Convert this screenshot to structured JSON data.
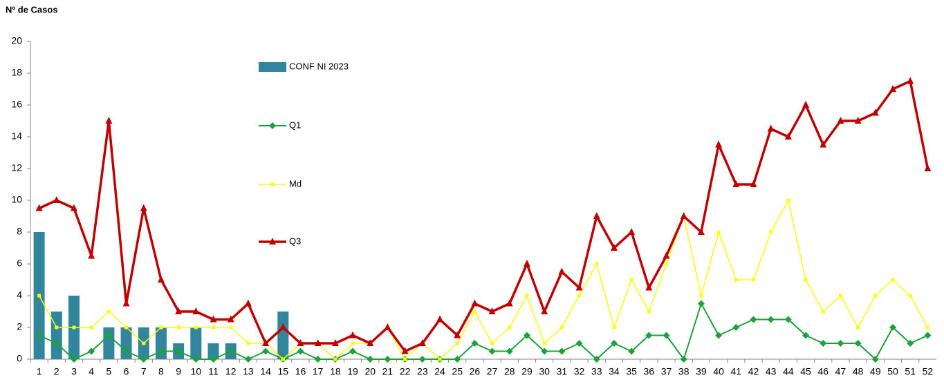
{
  "chart_data": {
    "type": "bar-line",
    "y_label": "Nº de Casos",
    "categories": [
      1,
      2,
      3,
      4,
      5,
      6,
      7,
      8,
      9,
      10,
      11,
      12,
      13,
      14,
      15,
      16,
      17,
      18,
      19,
      20,
      21,
      22,
      23,
      24,
      25,
      26,
      27,
      28,
      29,
      30,
      31,
      32,
      33,
      34,
      35,
      36,
      37,
      38,
      39,
      40,
      41,
      42,
      43,
      44,
      45,
      46,
      47,
      48,
      49,
      50,
      51,
      52
    ],
    "ylim": [
      0,
      20
    ],
    "yticks": [
      0,
      2,
      4,
      6,
      8,
      10,
      12,
      14,
      16,
      18,
      20
    ],
    "series": [
      {
        "name": "CONF NI 2023",
        "type": "bar",
        "color": "#31859c",
        "values": [
          8,
          3,
          4,
          null,
          2,
          2,
          2,
          2,
          1,
          2,
          1,
          1,
          null,
          null,
          3,
          null,
          null,
          null,
          null,
          null,
          null,
          null,
          null,
          null,
          null,
          null,
          null,
          null,
          null,
          null,
          null,
          null,
          null,
          null,
          null,
          null,
          null,
          null,
          null,
          null,
          null,
          null,
          null,
          null,
          null,
          null,
          null,
          null,
          null,
          null,
          null,
          null
        ]
      },
      {
        "name": "Q1",
        "type": "line",
        "marker": "diamond",
        "color": "#1aa33a",
        "values": [
          1.5,
          1,
          0,
          0.5,
          1.5,
          0.5,
          0,
          0.5,
          0.5,
          0,
          0,
          0.5,
          0,
          0.5,
          0,
          0.5,
          0,
          0,
          0.5,
          0,
          0,
          0,
          0,
          0,
          0,
          1,
          0.5,
          0.5,
          1.5,
          0.5,
          0.5,
          1,
          0,
          1,
          0.5,
          1.5,
          1.5,
          0,
          3.5,
          1.5,
          2,
          2.5,
          2.5,
          2.5,
          1.5,
          1,
          1,
          1,
          0,
          2,
          1,
          1.5
        ]
      },
      {
        "name": "Md",
        "type": "line",
        "marker": "square",
        "color": "#ffff00",
        "values": [
          4,
          2,
          2,
          2,
          3,
          2,
          1,
          2,
          2,
          2,
          2,
          2,
          1,
          1,
          0,
          1,
          1,
          0,
          1,
          1,
          2,
          0,
          1,
          0,
          1,
          3,
          1,
          2,
          4,
          1,
          2,
          4,
          6,
          2,
          5,
          3,
          6,
          9,
          4,
          8,
          5,
          5,
          8,
          10,
          5,
          3,
          4,
          2,
          4,
          5,
          4,
          2
        ]
      },
      {
        "name": "Q3",
        "type": "line",
        "marker": "triangle",
        "color": "#c00000",
        "values": [
          9.5,
          10,
          9.5,
          6.5,
          15,
          3.5,
          9.5,
          5,
          3,
          3,
          2.5,
          2.5,
          3.5,
          1,
          2,
          1,
          1,
          1,
          1.5,
          1,
          2,
          0.5,
          1,
          2.5,
          1.5,
          3.5,
          3,
          3.5,
          6,
          3,
          5.5,
          4.5,
          9,
          7,
          8,
          4.5,
          6.5,
          9,
          8,
          13.5,
          11,
          11,
          14.5,
          14,
          16,
          13.5,
          15,
          15,
          15.5,
          17,
          17.5,
          12
        ]
      }
    ]
  }
}
